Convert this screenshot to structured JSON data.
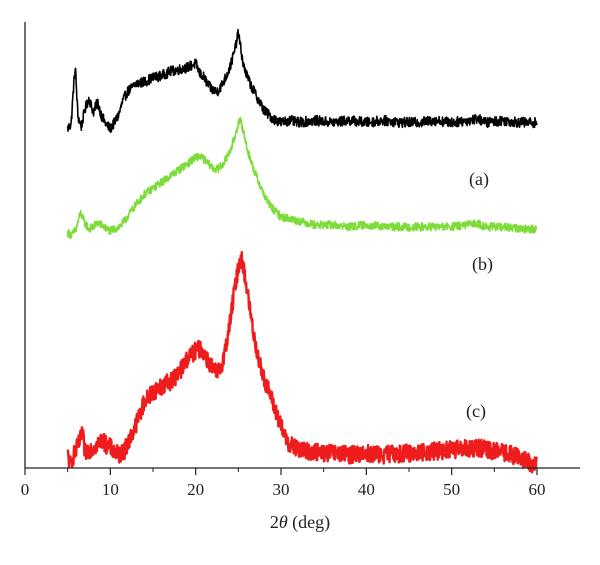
{
  "chart_data": {
    "type": "line",
    "xlabel_prefix": "2",
    "xlabel_symbol": "θ",
    "xlabel_suffix": " (deg)",
    "xlim": [
      0,
      65
    ],
    "x_ticks": [
      0,
      10,
      20,
      30,
      40,
      50,
      60
    ],
    "y_ticks_labeled": false,
    "grid": false,
    "legend": "none",
    "series": [
      {
        "name": "(a)",
        "color": "#000000",
        "x": [
          5,
          5.4,
          5.7,
          5.9,
          6.2,
          6.6,
          7,
          7.5,
          8,
          8.5,
          9,
          9.5,
          10,
          10.5,
          11,
          11.5,
          12,
          13,
          14,
          15,
          16,
          17,
          18,
          19,
          20,
          20.5,
          21,
          21.5,
          22,
          22.5,
          23,
          23.5,
          24,
          24.5,
          25,
          25.3,
          25.6,
          26,
          26.5,
          27,
          27.5,
          28,
          28.5,
          29,
          29.5,
          30,
          31,
          32,
          34,
          36,
          38,
          40,
          42,
          44,
          46,
          48,
          50,
          52,
          53,
          54,
          56,
          58,
          60
        ],
        "y": [
          0.41,
          0.43,
          0.62,
          0.71,
          0.47,
          0.42,
          0.5,
          0.56,
          0.49,
          0.54,
          0.47,
          0.43,
          0.41,
          0.44,
          0.48,
          0.55,
          0.59,
          0.63,
          0.64,
          0.66,
          0.67,
          0.69,
          0.7,
          0.71,
          0.73,
          0.68,
          0.66,
          0.62,
          0.6,
          0.59,
          0.62,
          0.66,
          0.71,
          0.78,
          0.88,
          0.8,
          0.72,
          0.67,
          0.62,
          0.58,
          0.54,
          0.5,
          0.48,
          0.46,
          0.45,
          0.44,
          0.45,
          0.44,
          0.45,
          0.44,
          0.45,
          0.44,
          0.45,
          0.44,
          0.44,
          0.45,
          0.44,
          0.45,
          0.46,
          0.44,
          0.45,
          0.44,
          0.44
        ]
      },
      {
        "name": "(b)",
        "color": "#7edc3a",
        "x": [
          5,
          5.5,
          6,
          6.5,
          7,
          7.5,
          8,
          8.5,
          9,
          9.5,
          10,
          10.5,
          11,
          11.5,
          12,
          13,
          14,
          15,
          16,
          17,
          18,
          19,
          20,
          20.5,
          21,
          21.5,
          22,
          22.5,
          23,
          23.5,
          24,
          24.5,
          25,
          25.3,
          25.6,
          26,
          26.5,
          27,
          27.5,
          28,
          28.5,
          29,
          29.5,
          30,
          31,
          32,
          34,
          36,
          38,
          40,
          42,
          44,
          46,
          48,
          50,
          52,
          53,
          54,
          56,
          58,
          60
        ],
        "y": [
          0.28,
          0.27,
          0.3,
          0.38,
          0.33,
          0.3,
          0.31,
          0.33,
          0.32,
          0.3,
          0.29,
          0.3,
          0.31,
          0.33,
          0.36,
          0.42,
          0.47,
          0.5,
          0.53,
          0.56,
          0.59,
          0.62,
          0.65,
          0.66,
          0.64,
          0.62,
          0.6,
          0.59,
          0.61,
          0.64,
          0.68,
          0.74,
          0.82,
          0.83,
          0.78,
          0.7,
          0.63,
          0.57,
          0.52,
          0.47,
          0.43,
          0.4,
          0.38,
          0.36,
          0.35,
          0.34,
          0.32,
          0.32,
          0.31,
          0.32,
          0.31,
          0.31,
          0.31,
          0.31,
          0.31,
          0.32,
          0.33,
          0.31,
          0.31,
          0.3,
          0.3
        ]
      },
      {
        "name": "(c)",
        "color": "#ee1c1c",
        "x": [
          5,
          5.3,
          5.6,
          6,
          6.5,
          6.7,
          7,
          7.5,
          8,
          8.5,
          9,
          9.5,
          10,
          10.5,
          11,
          11.5,
          12,
          13,
          14,
          15,
          16,
          17,
          18,
          19,
          20,
          20.5,
          21,
          21.5,
          22,
          22.5,
          23,
          23.5,
          24,
          24.5,
          25,
          25.3,
          25.6,
          26,
          26.5,
          27,
          27.5,
          28,
          28.5,
          29,
          29.5,
          30,
          31,
          32,
          34,
          36,
          38,
          40,
          42,
          44,
          46,
          48,
          50,
          52,
          53,
          54,
          56,
          58,
          59,
          60
        ],
        "y": [
          0.06,
          0.02,
          0.05,
          0.08,
          0.12,
          0.16,
          0.07,
          0.08,
          0.09,
          0.1,
          0.12,
          0.1,
          0.09,
          0.07,
          0.06,
          0.07,
          0.1,
          0.18,
          0.27,
          0.31,
          0.33,
          0.35,
          0.38,
          0.44,
          0.47,
          0.48,
          0.46,
          0.43,
          0.4,
          0.38,
          0.41,
          0.48,
          0.58,
          0.7,
          0.8,
          0.84,
          0.8,
          0.72,
          0.6,
          0.5,
          0.42,
          0.36,
          0.32,
          0.27,
          0.22,
          0.17,
          0.1,
          0.08,
          0.07,
          0.065,
          0.06,
          0.065,
          0.06,
          0.065,
          0.07,
          0.075,
          0.08,
          0.085,
          0.09,
          0.08,
          0.07,
          0.05,
          0.03,
          0.02
        ]
      }
    ]
  }
}
